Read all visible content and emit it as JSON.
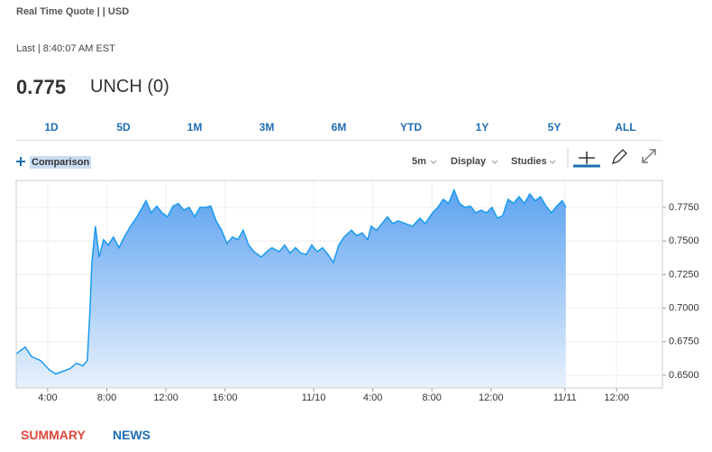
{
  "header": {
    "quote_label": "Real Time Quote | | USD",
    "last_label": "Last | 8:40:07 AM EST",
    "price": "0.775",
    "change": "UNCH (0)"
  },
  "ranges": [
    "1D",
    "5D",
    "1M",
    "3M",
    "6M",
    "YTD",
    "1Y",
    "5Y",
    "ALL"
  ],
  "toolbar": {
    "comparison": "Comparison",
    "interval": "5m",
    "display": "Display",
    "studies": "Studies"
  },
  "chart_data": {
    "type": "area",
    "color": "#1a9af0",
    "grid": true,
    "x": [
      1.87,
      2.48,
      2.9,
      3.51,
      4.12,
      4.55,
      5.04,
      5.52,
      5.95,
      6.38,
      6.68,
      6.87,
      6.99,
      7.23,
      7.48,
      7.78,
      8.09,
      8.45,
      8.82,
      9.18,
      9.61,
      10.04,
      10.4,
      10.65,
      11.01,
      11.38,
      11.74,
      12.11,
      12.48,
      12.84,
      13.21,
      13.57,
      13.94,
      14.3,
      14.67,
      15.04,
      15.4,
      15.77,
      16.13,
      16.5,
      16.87,
      17.23,
      17.6,
      17.96,
      18.45,
      18.82,
      19.18,
      19.67,
      20.04,
      20.4,
      20.77,
      21.13,
      21.5,
      21.87,
      22.23,
      22.6,
      22.96,
      23.33,
      23.7,
      24.06,
      24.55,
      24.91,
      25.28,
      25.65,
      25.89,
      26.26,
      26.62,
      26.99,
      27.35,
      27.72,
      28.21,
      28.7,
      29.18,
      29.55,
      30.04,
      30.4,
      30.77,
      31.13,
      31.5,
      31.87,
      32.23,
      32.6,
      32.96,
      33.33,
      33.7,
      34.06,
      34.43,
      34.79,
      35.16,
      35.53,
      35.89,
      36.26,
      36.62,
      36.99,
      37.35,
      37.72,
      38.09,
      38.45,
      38.82,
      39.06
    ],
    "values": [
      0.666,
      0.671,
      0.664,
      0.661,
      0.654,
      0.651,
      0.653,
      0.655,
      0.659,
      0.657,
      0.661,
      0.701,
      0.734,
      0.761,
      0.738,
      0.751,
      0.747,
      0.753,
      0.745,
      0.753,
      0.761,
      0.768,
      0.775,
      0.78,
      0.771,
      0.776,
      0.771,
      0.768,
      0.776,
      0.778,
      0.773,
      0.775,
      0.768,
      0.775,
      0.775,
      0.776,
      0.765,
      0.758,
      0.748,
      0.753,
      0.751,
      0.758,
      0.747,
      0.742,
      0.738,
      0.742,
      0.745,
      0.742,
      0.747,
      0.741,
      0.745,
      0.741,
      0.74,
      0.747,
      0.742,
      0.745,
      0.74,
      0.734,
      0.747,
      0.753,
      0.758,
      0.754,
      0.756,
      0.751,
      0.761,
      0.758,
      0.763,
      0.768,
      0.763,
      0.765,
      0.763,
      0.761,
      0.767,
      0.763,
      0.771,
      0.775,
      0.781,
      0.778,
      0.788,
      0.778,
      0.775,
      0.776,
      0.771,
      0.773,
      0.771,
      0.775,
      0.767,
      0.769,
      0.781,
      0.778,
      0.783,
      0.778,
      0.785,
      0.78,
      0.783,
      0.776,
      0.771,
      0.776,
      0.78,
      0.775
    ],
    "xlim": [
      1.87,
      45.6
    ],
    "xticks": [
      {
        "value": 4,
        "label": "4:00"
      },
      {
        "value": 8,
        "label": "8:00"
      },
      {
        "value": 12,
        "label": "12:00"
      },
      {
        "value": 16,
        "label": "16:00"
      },
      {
        "value": 22,
        "label": "11/10"
      },
      {
        "value": 26,
        "label": "4:00"
      },
      {
        "value": 30,
        "label": "8:00"
      },
      {
        "value": 34,
        "label": "12:00"
      },
      {
        "value": 39,
        "label": "11/11"
      },
      {
        "value": 42.5,
        "label": "12:00"
      }
    ],
    "ylim": [
      0.6406,
      0.7951
    ],
    "yticks": [
      {
        "value": 0.65,
        "label": "0.6500"
      },
      {
        "value": 0.675,
        "label": "0.6750"
      },
      {
        "value": 0.7,
        "label": "0.7000"
      },
      {
        "value": 0.725,
        "label": "0.7250"
      },
      {
        "value": 0.75,
        "label": "0.7500"
      },
      {
        "value": 0.775,
        "label": "0.7750"
      }
    ]
  },
  "tabs": [
    "SUMMARY",
    "NEWS"
  ]
}
